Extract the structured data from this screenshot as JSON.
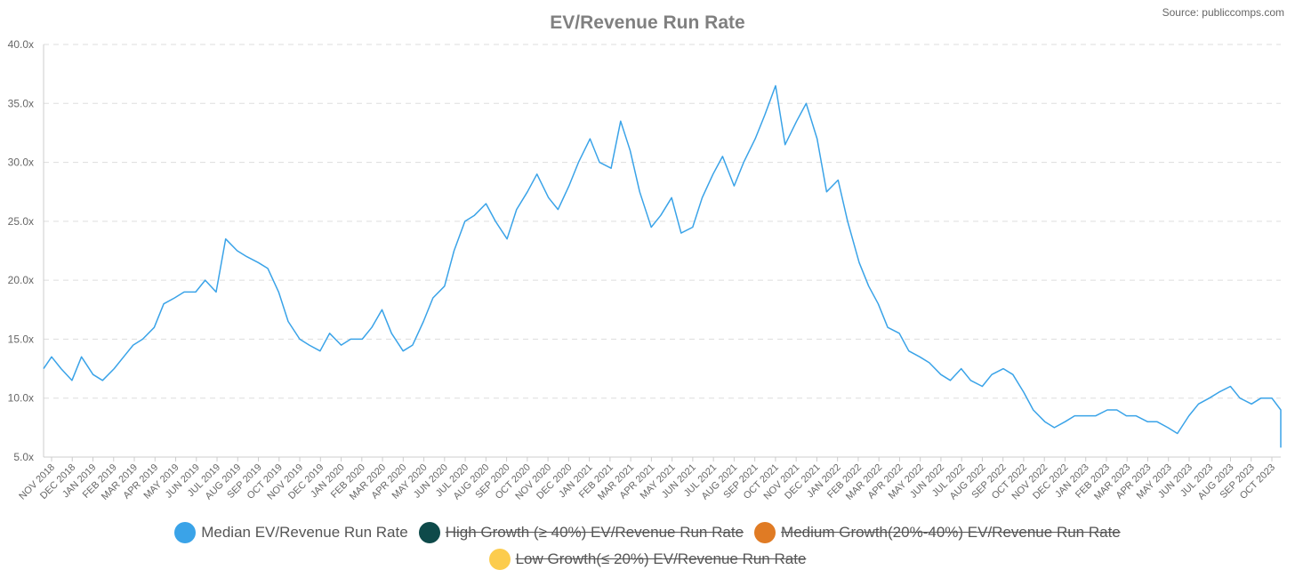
{
  "chart_data": {
    "type": "line",
    "title": "EV/Revenue Run Rate",
    "source": "Source: publiccomps.com",
    "ylim": [
      5,
      40
    ],
    "y_ticks": [
      "5.0x",
      "10.0x",
      "15.0x",
      "20.0x",
      "25.0x",
      "30.0x",
      "35.0x",
      "40.0x"
    ],
    "y_tick_values": [
      5,
      10,
      15,
      20,
      25,
      30,
      35,
      40
    ],
    "x_ticks": [
      "NOV 2018",
      "DEC 2018",
      "JAN 2019",
      "FEB 2019",
      "MAR 2019",
      "APR 2019",
      "MAY 2019",
      "JUN 2019",
      "JUL 2019",
      "AUG 2019",
      "SEP 2019",
      "OCT 2019",
      "NOV 2019",
      "DEC 2019",
      "JAN 2020",
      "FEB 2020",
      "MAR 2020",
      "APR 2020",
      "MAY 2020",
      "JUN 2020",
      "JUL 2020",
      "AUG 2020",
      "SEP 2020",
      "OCT 2020",
      "NOV 2020",
      "DEC 2020",
      "JAN 2021",
      "FEB 2021",
      "MAR 2021",
      "APR 2021",
      "MAY 2021",
      "JUN 2021",
      "JUL 2021",
      "AUG 2021",
      "SEP 2021",
      "OCT 2021",
      "NOV 2021",
      "DEC 2021",
      "JAN 2022",
      "FEB 2022",
      "MAR 2022",
      "APR 2022",
      "MAY 2022",
      "JUN 2022",
      "JUL 2022",
      "AUG 2022",
      "SEP 2022",
      "OCT 2022",
      "NOV 2022",
      "DEC 2022",
      "JAN 2023",
      "FEB 2023",
      "MAR 2023",
      "APR 2023",
      "MAY 2023",
      "JUN 2023",
      "JUL 2023",
      "AUG 2023",
      "SEP 2023",
      "OCT 2023"
    ],
    "grid": true,
    "legend_position": "bottom",
    "series": [
      {
        "name": "Median EV/Revenue Run Rate",
        "color": "#3aa3e8",
        "visible": true,
        "x": [
          "2018-10-15",
          "2018-11-01",
          "2018-11-15",
          "2018-12-01",
          "2018-12-15",
          "2019-01-01",
          "2019-01-15",
          "2019-02-01",
          "2019-02-15",
          "2019-03-01",
          "2019-03-15",
          "2019-04-01",
          "2019-04-15",
          "2019-05-01",
          "2019-05-15",
          "2019-06-01",
          "2019-06-15",
          "2019-07-01",
          "2019-07-15",
          "2019-08-01",
          "2019-08-15",
          "2019-09-01",
          "2019-09-15",
          "2019-10-01",
          "2019-10-15",
          "2019-11-01",
          "2019-11-15",
          "2019-12-01",
          "2019-12-15",
          "2020-01-01",
          "2020-01-15",
          "2020-02-01",
          "2020-02-15",
          "2020-03-01",
          "2020-03-15",
          "2020-04-01",
          "2020-04-15",
          "2020-05-01",
          "2020-05-15",
          "2020-06-01",
          "2020-06-15",
          "2020-07-01",
          "2020-07-15",
          "2020-08-01",
          "2020-08-15",
          "2020-09-01",
          "2020-09-15",
          "2020-10-01",
          "2020-10-15",
          "2020-11-01",
          "2020-11-15",
          "2020-12-01",
          "2020-12-15",
          "2021-01-01",
          "2021-01-15",
          "2021-02-01",
          "2021-02-15",
          "2021-03-01",
          "2021-03-15",
          "2021-04-01",
          "2021-04-15",
          "2021-05-01",
          "2021-05-15",
          "2021-06-01",
          "2021-06-15",
          "2021-07-01",
          "2021-07-15",
          "2021-08-01",
          "2021-08-15",
          "2021-09-01",
          "2021-09-15",
          "2021-10-01",
          "2021-10-15",
          "2021-11-01",
          "2021-11-15",
          "2021-12-01",
          "2021-12-15",
          "2022-01-01",
          "2022-01-15",
          "2022-02-01",
          "2022-02-15",
          "2022-03-01",
          "2022-03-15",
          "2022-04-01",
          "2022-04-15",
          "2022-05-01",
          "2022-05-15",
          "2022-06-01",
          "2022-06-15",
          "2022-07-01",
          "2022-07-15",
          "2022-08-01",
          "2022-08-15",
          "2022-09-01",
          "2022-09-15",
          "2022-10-01",
          "2022-10-15",
          "2022-11-01",
          "2022-11-15",
          "2022-12-01",
          "2022-12-15",
          "2023-01-01",
          "2023-01-15",
          "2023-02-01",
          "2023-02-15",
          "2023-03-01",
          "2023-03-15",
          "2023-04-01",
          "2023-04-15",
          "2023-05-01",
          "2023-05-15",
          "2023-06-01",
          "2023-06-15",
          "2023-07-01",
          "2023-07-15",
          "2023-08-01",
          "2023-08-15",
          "2023-09-01",
          "2023-09-15",
          "2023-10-01",
          "2023-10-15",
          "2023-10-25"
        ],
        "values": [
          12.5,
          13.5,
          12.5,
          11.5,
          13.5,
          12.0,
          11.5,
          12.5,
          13.5,
          14.5,
          15.0,
          16.0,
          18.0,
          18.5,
          19.0,
          19.0,
          20.0,
          19.0,
          23.5,
          22.5,
          22.0,
          21.5,
          21.0,
          19.0,
          16.5,
          15.0,
          14.5,
          14.0,
          15.5,
          14.5,
          15.0,
          15.0,
          16.0,
          17.5,
          15.5,
          14.0,
          14.5,
          16.5,
          18.5,
          19.5,
          22.5,
          25.0,
          25.5,
          26.5,
          25.0,
          23.5,
          26.0,
          27.5,
          29.0,
          27.0,
          26.0,
          28.0,
          30.0,
          32.0,
          30.0,
          29.5,
          33.5,
          31.0,
          27.5,
          24.5,
          25.5,
          27.0,
          24.0,
          24.5,
          27.0,
          29.0,
          30.5,
          28.0,
          30.0,
          32.0,
          34.0,
          36.5,
          31.5,
          33.5,
          35.0,
          32.0,
          27.5,
          28.5,
          25.0,
          21.5,
          19.5,
          18.0,
          16.0,
          15.5,
          14.0,
          13.5,
          13.0,
          12.0,
          11.5,
          12.5,
          11.5,
          11.0,
          12.0,
          12.5,
          12.0,
          10.5,
          9.0,
          8.0,
          7.5,
          8.0,
          8.5,
          8.5,
          8.5,
          9.0,
          9.0,
          8.5,
          8.5,
          8.0,
          8.0,
          7.5,
          7.0,
          8.5,
          9.5,
          10.0,
          10.5,
          11.0,
          10.0,
          9.5,
          10.0,
          10.0,
          9.0,
          5.8
        ]
      },
      {
        "name": "High Growth (≥ 40%) EV/Revenue Run Rate",
        "color": "#0e4a4a",
        "visible": false
      },
      {
        "name": "Medium Growth(20%-40%) EV/Revenue Run Rate",
        "color": "#e07b24",
        "visible": false
      },
      {
        "name": "Low Growth(≤ 20%) EV/Revenue Run Rate",
        "color": "#fccc4d",
        "visible": false
      }
    ]
  }
}
